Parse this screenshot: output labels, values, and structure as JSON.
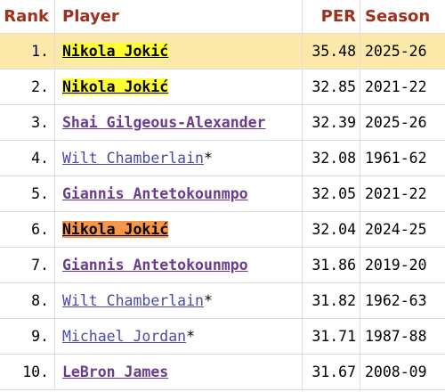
{
  "table": {
    "header": [
      "Rank",
      "Player",
      "PER",
      "Season"
    ],
    "rows": [
      {
        "rank": "1.",
        "player": "Nikola Jokić",
        "suffix": null,
        "per": "35.48",
        "season": "2025-26",
        "row_highlight": "#fce8a8",
        "name_highlight": "#ffff33",
        "link": false
      },
      {
        "rank": "2.",
        "player": "Nikola Jokić",
        "suffix": null,
        "per": "32.85",
        "season": "2021-22",
        "row_highlight": null,
        "name_highlight": "#ffff33",
        "link": false
      },
      {
        "rank": "3.",
        "player": "Shai Gilgeous-Alexander",
        "suffix": null,
        "per": "32.39",
        "season": "2025-26",
        "row_highlight": null,
        "name_highlight": null,
        "link": true
      },
      {
        "rank": "4.",
        "player": "Wilt Chamberlain",
        "suffix": "*",
        "per": "32.08",
        "season": "1961-62",
        "row_highlight": null,
        "name_highlight": null,
        "link": true
      },
      {
        "rank": "5.",
        "player": "Giannis Antetokounmpo",
        "suffix": null,
        "per": "32.05",
        "season": "2021-22",
        "row_highlight": null,
        "name_highlight": null,
        "link": true
      },
      {
        "rank": "6.",
        "player": "Nikola Jokić",
        "suffix": null,
        "per": "32.04",
        "season": "2024-25",
        "row_highlight": null,
        "name_highlight": "#f79646",
        "link": false
      },
      {
        "rank": "7.",
        "player": "Giannis Antetokounmpo",
        "suffix": null,
        "per": "31.86",
        "season": "2019-20",
        "row_highlight": null,
        "name_highlight": null,
        "link": true
      },
      {
        "rank": "8.",
        "player": "Wilt Chamberlain",
        "suffix": "*",
        "per": "31.82",
        "season": "1962-63",
        "row_highlight": null,
        "name_highlight": null,
        "link": true
      },
      {
        "rank": "9.",
        "player": "Michael Jordan",
        "suffix": "*",
        "per": "31.71",
        "season": "1987-88",
        "row_highlight": null,
        "name_highlight": null,
        "link": true
      },
      {
        "rank": "10.",
        "player": "LeBron James",
        "suffix": null,
        "per": "31.67",
        "season": "2008-09",
        "row_highlight": null,
        "name_highlight": null,
        "link": true
      }
    ]
  }
}
